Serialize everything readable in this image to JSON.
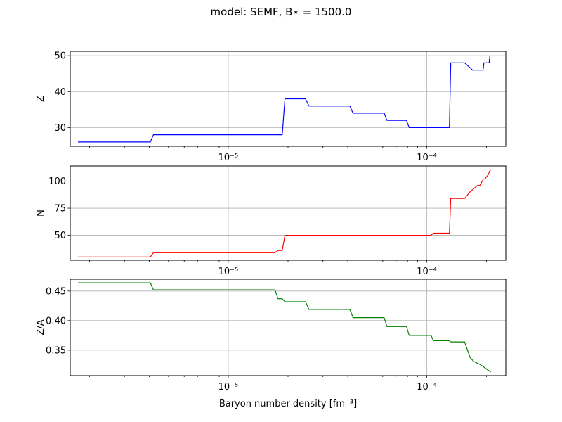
{
  "title": "model: SEMF, B⋆ = 1500.0",
  "xlabel": "Baryon number density [fm⁻³]",
  "chart_data": [
    {
      "type": "line",
      "ylabel": "Z",
      "color": "#0000ff",
      "xscale": "log",
      "xlim": [
        1.6e-06,
        0.00025
      ],
      "ylim": [
        24.8,
        51.2
      ],
      "x_ticks": [
        1e-05,
        0.0001
      ],
      "x_tick_labels": [
        "10⁻⁵",
        "10⁻⁴"
      ],
      "y_ticks": [
        30,
        40,
        50
      ],
      "y_tick_labels": [
        "30",
        "40",
        "50"
      ],
      "grid": true,
      "points": [
        [
          1.75e-06,
          26
        ],
        [
          4.05e-06,
          26
        ],
        [
          4.2e-06,
          28
        ],
        [
          1.87e-05,
          28
        ],
        [
          1.93e-05,
          38
        ],
        [
          2.45e-05,
          38
        ],
        [
          2.55e-05,
          36
        ],
        [
          4.1e-05,
          36
        ],
        [
          4.25e-05,
          34
        ],
        [
          6.1e-05,
          34
        ],
        [
          6.3e-05,
          32
        ],
        [
          7.9e-05,
          32
        ],
        [
          8.15e-05,
          30
        ],
        [
          0.00013,
          30
        ],
        [
          0.000132,
          48
        ],
        [
          0.000155,
          48
        ],
        [
          0.00017,
          46
        ],
        [
          0.000192,
          46
        ],
        [
          0.000194,
          48
        ],
        [
          0.000206,
          48
        ],
        [
          0.000208,
          50
        ]
      ]
    },
    {
      "type": "line",
      "ylabel": "N",
      "color": "#ff0000",
      "xscale": "log",
      "xlim": [
        1.6e-06,
        0.00025
      ],
      "ylim": [
        27,
        114
      ],
      "x_ticks": [
        1e-05,
        0.0001
      ],
      "x_tick_labels": [
        "10⁻⁵",
        "10⁻⁴"
      ],
      "y_ticks": [
        50,
        75,
        100
      ],
      "y_tick_labels": [
        "50",
        "75",
        "100"
      ],
      "grid": true,
      "points": [
        [
          1.75e-06,
          30
        ],
        [
          4.05e-06,
          30
        ],
        [
          4.2e-06,
          34
        ],
        [
          1.72e-05,
          34
        ],
        [
          1.78e-05,
          36
        ],
        [
          1.87e-05,
          36
        ],
        [
          1.93e-05,
          50
        ],
        [
          0.000105,
          50
        ],
        [
          0.000108,
          52
        ],
        [
          0.00013,
          52
        ],
        [
          0.000132,
          84
        ],
        [
          0.000155,
          84
        ],
        [
          0.000165,
          90
        ],
        [
          0.00018,
          96
        ],
        [
          0.000185,
          96
        ],
        [
          0.000193,
          102
        ],
        [
          0.000196,
          102
        ],
        [
          0.0002,
          104
        ],
        [
          0.000204,
          106
        ],
        [
          0.000208,
          110
        ],
        [
          0.00021,
          110
        ]
      ]
    },
    {
      "type": "line",
      "ylabel": "Z/A",
      "color": "#008000",
      "xscale": "log",
      "xlim": [
        1.6e-06,
        0.00025
      ],
      "ylim": [
        0.307,
        0.47
      ],
      "x_ticks": [
        1e-05,
        0.0001
      ],
      "x_tick_labels": [
        "10⁻⁵",
        "10⁻⁴"
      ],
      "y_ticks": [
        0.35,
        0.4,
        0.45
      ],
      "y_tick_labels": [
        "0.35",
        "0.40",
        "0.45"
      ],
      "grid": true,
      "points": [
        [
          1.75e-06,
          0.464
        ],
        [
          4.05e-06,
          0.464
        ],
        [
          4.2e-06,
          0.452
        ],
        [
          1.72e-05,
          0.452
        ],
        [
          1.78e-05,
          0.437
        ],
        [
          1.87e-05,
          0.437
        ],
        [
          1.93e-05,
          0.432
        ],
        [
          2.45e-05,
          0.432
        ],
        [
          2.55e-05,
          0.419
        ],
        [
          4.1e-05,
          0.419
        ],
        [
          4.25e-05,
          0.405
        ],
        [
          6.1e-05,
          0.405
        ],
        [
          6.3e-05,
          0.39
        ],
        [
          7.9e-05,
          0.39
        ],
        [
          8.15e-05,
          0.375
        ],
        [
          0.000105,
          0.375
        ],
        [
          0.000108,
          0.366
        ],
        [
          0.00013,
          0.366
        ],
        [
          0.000132,
          0.364
        ],
        [
          0.000155,
          0.364
        ],
        [
          0.000165,
          0.338
        ],
        [
          0.000172,
          0.331
        ],
        [
          0.000185,
          0.326
        ],
        [
          0.000193,
          0.322
        ],
        [
          0.0002,
          0.318
        ],
        [
          0.000206,
          0.315
        ],
        [
          0.00021,
          0.313
        ]
      ]
    }
  ]
}
